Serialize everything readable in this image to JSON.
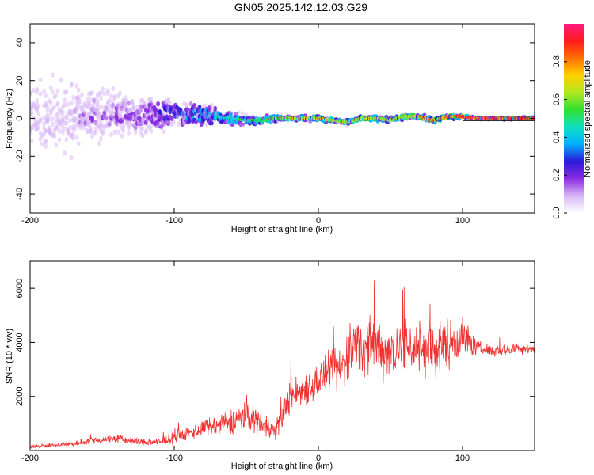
{
  "title": "GN05.2025.142.12.03.G29",
  "chart_data": [
    {
      "type": "heatmap",
      "xlabel": "Height of straight line (km)",
      "ylabel": "Frequency (Hz)",
      "xlim": [
        -200,
        150
      ],
      "ylim": [
        -50,
        50
      ],
      "xticks": [
        -200,
        -100,
        0,
        100
      ],
      "yticks": [
        -40,
        -20,
        0,
        20,
        40
      ],
      "colorbar": {
        "label": "Normalized spectral amplitude",
        "range": [
          0,
          1
        ],
        "ticks": [
          "0.0",
          "0.2",
          "0.4",
          "0.6",
          "0.8"
        ],
        "colors": [
          "#ffffff",
          "#d8b6f5",
          "#8a2be2",
          "#2b1bd8",
          "#00b0ff",
          "#10e0c0",
          "#30e030",
          "#b0e820",
          "#ffd000",
          "#ff7000",
          "#ff1a1a",
          "#ff1a80"
        ]
      },
      "ridge_km": [
        -200,
        -180,
        -160,
        -140,
        -120,
        -100,
        -90,
        -80,
        -70,
        -60,
        -50,
        -40,
        -30,
        -20,
        -10,
        0,
        10,
        20,
        30,
        40,
        50,
        60,
        70,
        80,
        90,
        100,
        110,
        120,
        130,
        140,
        150
      ],
      "ridge_hz": [
        0,
        1,
        2,
        2,
        1,
        3,
        2,
        2,
        1,
        0,
        -1,
        -1,
        0,
        0,
        0,
        0,
        -1,
        -2,
        0,
        0,
        -1,
        1,
        1,
        -1,
        1,
        1,
        0,
        0,
        0,
        0,
        0
      ],
      "ridge_amplitude": [
        0.1,
        0.12,
        0.15,
        0.15,
        0.18,
        0.3,
        0.35,
        0.38,
        0.4,
        0.42,
        0.45,
        0.5,
        0.55,
        0.6,
        0.62,
        0.65,
        0.6,
        0.55,
        0.6,
        0.62,
        0.6,
        0.65,
        0.7,
        0.72,
        0.75,
        0.85,
        0.9,
        0.9,
        0.9,
        0.9,
        0.9
      ],
      "ridge_width_hz": [
        30,
        28,
        22,
        18,
        14,
        9,
        8,
        7,
        6,
        5,
        4,
        3,
        2.5,
        2,
        2,
        2,
        2,
        2,
        2,
        2,
        2,
        2,
        2,
        2,
        2,
        1.5,
        1,
        1,
        1,
        1,
        1
      ]
    },
    {
      "type": "line",
      "xlabel": "Height of straight line (km)",
      "ylabel": "SNR (10 * v/v)",
      "xlim": [
        -200,
        150
      ],
      "ylim": [
        0,
        7000
      ],
      "xticks": [
        -200,
        -100,
        0,
        100
      ],
      "yticks": [
        2000,
        4000,
        6000
      ],
      "color": "#f03030",
      "x": [
        -200,
        -190,
        -180,
        -170,
        -160,
        -150,
        -140,
        -130,
        -120,
        -110,
        -100,
        -90,
        -80,
        -70,
        -60,
        -50,
        -40,
        -30,
        -25,
        -20,
        -15,
        -10,
        -5,
        0,
        5,
        10,
        15,
        20,
        25,
        30,
        40,
        50,
        60,
        70,
        80,
        90,
        100,
        110,
        120,
        130,
        140,
        150
      ],
      "y": [
        150,
        180,
        200,
        250,
        350,
        400,
        450,
        350,
        300,
        300,
        500,
        650,
        800,
        900,
        1100,
        1300,
        1050,
        700,
        1300,
        2000,
        2100,
        2300,
        2400,
        2600,
        2800,
        2900,
        3000,
        3400,
        4000,
        3800,
        3900,
        3700,
        3900,
        3800,
        3700,
        4000,
        4200,
        3800,
        3700,
        3700,
        3800,
        3750
      ],
      "noise": [
        120,
        120,
        150,
        200,
        250,
        250,
        300,
        250,
        250,
        300,
        400,
        500,
        600,
        700,
        900,
        1000,
        900,
        700,
        900,
        1100,
        1200,
        1200,
        1300,
        1300,
        1400,
        1500,
        1600,
        1800,
        2000,
        2000,
        2100,
        2000,
        2000,
        2000,
        1900,
        1800,
        1500,
        500,
        400,
        400,
        400,
        400
      ]
    }
  ]
}
